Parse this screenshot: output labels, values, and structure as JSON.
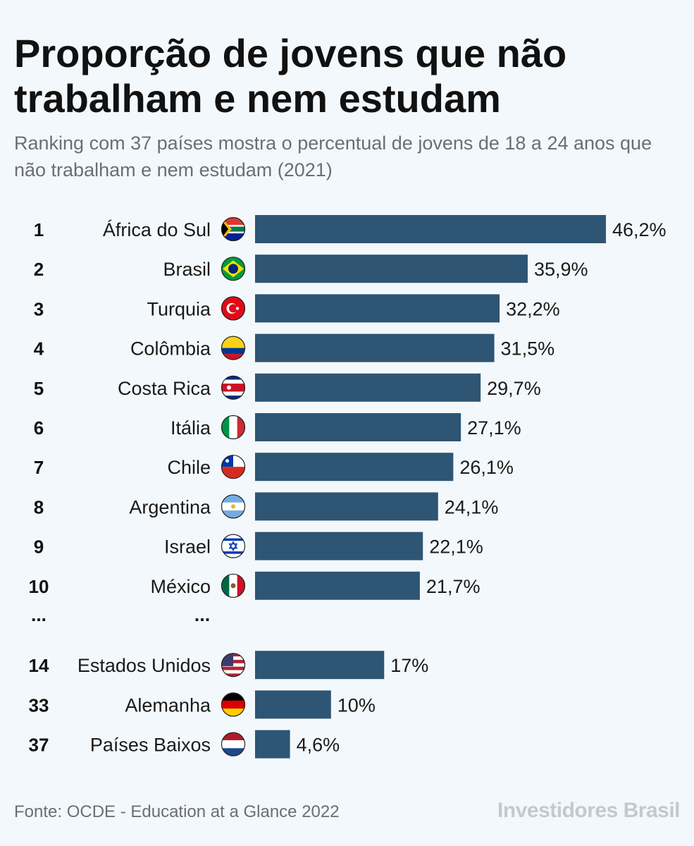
{
  "chart_data": {
    "type": "bar",
    "orientation": "horizontal",
    "title": "Proporção de jovens que não trabalham e nem estudam",
    "subtitle": "Ranking com 37 países mostra o percentual de jovens de 18 a 24 anos que não trabalham e nem estudam (2021)",
    "source": "Fonte: OCDE - Education at a Glance 2022",
    "brand": "Investidores Brasil",
    "bar_color": "#2e5573",
    "rows": [
      {
        "rank": "1",
        "country": "África do Sul",
        "value": 46.2,
        "label": "46,2%",
        "flag": "south-africa-flag"
      },
      {
        "rank": "2",
        "country": "Brasil",
        "value": 35.9,
        "label": "35,9%",
        "flag": "brazil-flag"
      },
      {
        "rank": "3",
        "country": "Turquia",
        "value": 32.2,
        "label": "32,2%",
        "flag": "turkey-flag"
      },
      {
        "rank": "4",
        "country": "Colômbia",
        "value": 31.5,
        "label": "31,5%",
        "flag": "colombia-flag"
      },
      {
        "rank": "5",
        "country": "Costa Rica",
        "value": 29.7,
        "label": "29,7%",
        "flag": "costa-rica-flag"
      },
      {
        "rank": "6",
        "country": "Itália",
        "value": 27.1,
        "label": "27,1%",
        "flag": "italy-flag"
      },
      {
        "rank": "7",
        "country": "Chile",
        "value": 26.1,
        "label": "26,1%",
        "flag": "chile-flag"
      },
      {
        "rank": "8",
        "country": "Argentina",
        "value": 24.1,
        "label": "24,1%",
        "flag": "argentina-flag"
      },
      {
        "rank": "9",
        "country": "Israel",
        "value": 22.1,
        "label": "22,1%",
        "flag": "israel-flag"
      },
      {
        "rank": "10",
        "country": "México",
        "value": 21.7,
        "label": "21,7%",
        "flag": "mexico-flag"
      },
      {
        "rank": "...",
        "country": "...",
        "value": null,
        "label": "",
        "flag": null
      },
      {
        "rank": "14",
        "country": "Estados Unidos",
        "value": 17,
        "label": "17%",
        "flag": "usa-flag"
      },
      {
        "rank": "33",
        "country": "Alemanha",
        "value": 10,
        "label": "10%",
        "flag": "germany-flag"
      },
      {
        "rank": "37",
        "country": "Países Baixos",
        "value": 4.6,
        "label": "4,6%",
        "flag": "netherlands-flag"
      }
    ]
  }
}
